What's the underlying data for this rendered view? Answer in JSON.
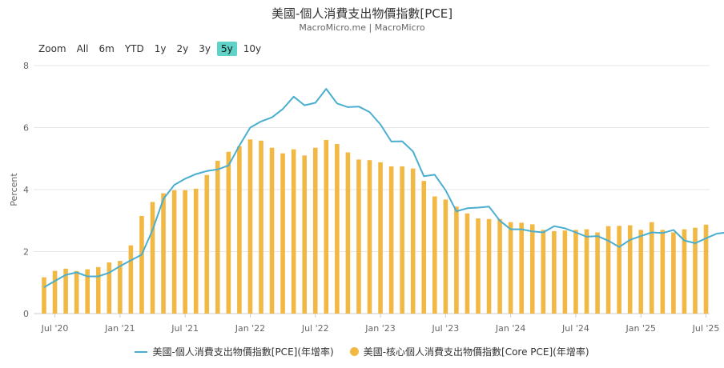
{
  "header": {
    "title": "美國-個人消費支出物價指數[PCE]",
    "subtitle": "MacroMicro.me | MacroMicro"
  },
  "zoom": {
    "label": "Zoom",
    "buttons": [
      "All",
      "6m",
      "YTD",
      "1y",
      "2y",
      "3y",
      "5y",
      "10y"
    ],
    "active": "5y",
    "active_color": "#5fd3c7"
  },
  "legend": {
    "items": [
      {
        "label": "美國-個人消費支出物價指數[PCE](年增率)",
        "color": "#4aaed0",
        "symbol": "line"
      },
      {
        "label": "美國-核心個人消費支出物價指數[Core PCE](年增率)",
        "color": "#f2b844",
        "symbol": "circle"
      }
    ]
  },
  "chart_data": {
    "type": "bar+line",
    "ylabel": "Percent",
    "ylim": [
      0,
      8
    ],
    "yticks": [
      0,
      2,
      4,
      6,
      8
    ],
    "x_start": "2020-06",
    "x_tick_labels": [
      "Jul '20",
      "Jan '21",
      "Jul '21",
      "Jan '22",
      "Jul '22",
      "Jan '23",
      "Jul '23",
      "Jan '24",
      "Jul '24",
      "Jan '25",
      "Jul '25"
    ],
    "series": [
      {
        "name": "美國-個人消費支出物價指數[PCE](年增率)",
        "type": "line",
        "color": "#4aaed0",
        "values": [
          0.85,
          1.05,
          1.25,
          1.33,
          1.2,
          1.2,
          1.32,
          1.53,
          1.72,
          1.9,
          2.7,
          3.7,
          4.15,
          4.35,
          4.5,
          4.6,
          4.65,
          4.78,
          5.42,
          6.0,
          6.2,
          6.33,
          6.6,
          7.0,
          6.72,
          6.8,
          7.25,
          6.78,
          6.66,
          6.68,
          6.5,
          6.1,
          5.55,
          5.56,
          5.23,
          4.43,
          4.48,
          3.98,
          3.3,
          3.4,
          3.42,
          3.45,
          3.0,
          2.72,
          2.72,
          2.65,
          2.62,
          2.82,
          2.75,
          2.62,
          2.48,
          2.5,
          2.35,
          2.15,
          2.38,
          2.5,
          2.62,
          2.6,
          2.7,
          2.36,
          2.27,
          2.43,
          2.58,
          2.62
        ]
      },
      {
        "name": "美國-核心個人消費支出物價指數[Core PCE](年增率)",
        "type": "bar",
        "color": "#f2b844",
        "values": [
          1.17,
          1.38,
          1.45,
          1.37,
          1.43,
          1.5,
          1.65,
          1.7,
          2.2,
          3.15,
          3.6,
          3.88,
          3.98,
          3.98,
          4.03,
          4.47,
          4.93,
          5.22,
          5.4,
          5.62,
          5.58,
          5.35,
          5.17,
          5.3,
          5.1,
          5.35,
          5.6,
          5.47,
          5.2,
          4.97,
          4.95,
          4.88,
          4.75,
          4.75,
          4.68,
          4.28,
          3.78,
          3.68,
          3.45,
          3.23,
          3.07,
          3.05,
          3.05,
          2.95,
          2.93,
          2.88,
          2.7,
          2.66,
          2.68,
          2.7,
          2.72,
          2.62,
          2.82,
          2.83,
          2.85,
          2.7,
          2.95,
          2.7,
          2.62,
          2.72,
          2.77,
          2.87
        ]
      }
    ]
  }
}
